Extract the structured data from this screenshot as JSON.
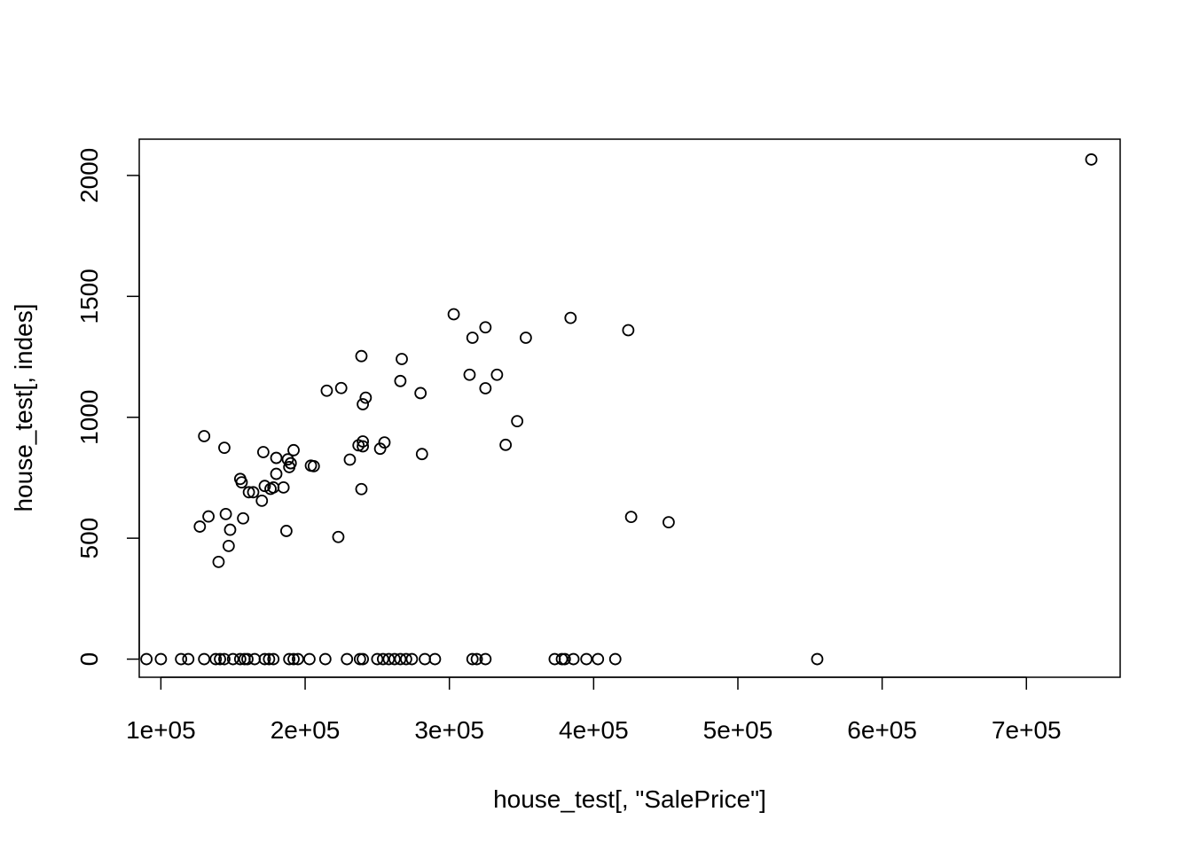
{
  "chart_data": {
    "type": "scatter",
    "title": "",
    "xlabel": "house_test[, \"SalePrice\"]",
    "ylabel": "house_test[, indes]",
    "xlim": [
      85000,
      765000
    ],
    "ylim": [
      -75,
      2150
    ],
    "x_ticks": [
      100000,
      200000,
      300000,
      400000,
      500000,
      600000,
      700000
    ],
    "x_tick_labels": [
      "1e+05",
      "2e+05",
      "3e+05",
      "4e+05",
      "5e+05",
      "6e+05",
      "7e+05"
    ],
    "y_ticks": [
      0,
      500,
      1000,
      1500,
      2000
    ],
    "y_tick_labels": [
      "0",
      "500",
      "1000",
      "1500",
      "2000"
    ],
    "grid": false,
    "legend": "none",
    "point_color": "#000000",
    "points": [
      [
        745000,
        2066
      ],
      [
        303000,
        1426
      ],
      [
        384000,
        1411
      ],
      [
        325000,
        1372
      ],
      [
        424000,
        1360
      ],
      [
        316000,
        1329
      ],
      [
        353000,
        1329
      ],
      [
        239000,
        1253
      ],
      [
        267000,
        1241
      ],
      [
        314000,
        1176
      ],
      [
        333000,
        1176
      ],
      [
        266000,
        1150
      ],
      [
        225000,
        1121
      ],
      [
        325000,
        1120
      ],
      [
        215000,
        1110
      ],
      [
        280000,
        1100
      ],
      [
        242000,
        1081
      ],
      [
        240000,
        1054
      ],
      [
        347000,
        984
      ],
      [
        130000,
        922
      ],
      [
        240000,
        900
      ],
      [
        255000,
        896
      ],
      [
        339000,
        886
      ],
      [
        237000,
        884
      ],
      [
        240000,
        880
      ],
      [
        144000,
        874
      ],
      [
        252000,
        870
      ],
      [
        192000,
        864
      ],
      [
        171000,
        856
      ],
      [
        281000,
        848
      ],
      [
        180000,
        832
      ],
      [
        231000,
        825
      ],
      [
        188000,
        826
      ],
      [
        190000,
        810
      ],
      [
        189000,
        794
      ],
      [
        204000,
        800
      ],
      [
        206000,
        798
      ],
      [
        180000,
        766
      ],
      [
        155000,
        745
      ],
      [
        156000,
        731
      ],
      [
        172000,
        716
      ],
      [
        176000,
        704
      ],
      [
        185000,
        710
      ],
      [
        178000,
        710
      ],
      [
        239000,
        703
      ],
      [
        161000,
        690
      ],
      [
        164000,
        690
      ],
      [
        170000,
        655
      ],
      [
        145000,
        600
      ],
      [
        133000,
        590
      ],
      [
        157000,
        582
      ],
      [
        426000,
        588
      ],
      [
        452000,
        566
      ],
      [
        127000,
        548
      ],
      [
        148000,
        535
      ],
      [
        187000,
        530
      ],
      [
        223000,
        505
      ],
      [
        147000,
        468
      ],
      [
        140000,
        402
      ],
      [
        555000,
        0
      ],
      [
        90000,
        0
      ],
      [
        100000,
        0
      ],
      [
        114000,
        0
      ],
      [
        119000,
        0
      ],
      [
        130000,
        0
      ],
      [
        138000,
        0
      ],
      [
        141000,
        0
      ],
      [
        144000,
        0
      ],
      [
        150000,
        0
      ],
      [
        155000,
        0
      ],
      [
        158000,
        0
      ],
      [
        160000,
        0
      ],
      [
        165000,
        0
      ],
      [
        172000,
        0
      ],
      [
        175000,
        0
      ],
      [
        178000,
        0
      ],
      [
        189000,
        0
      ],
      [
        192000,
        0
      ],
      [
        195000,
        0
      ],
      [
        203000,
        0
      ],
      [
        214000,
        0
      ],
      [
        229000,
        0
      ],
      [
        238000,
        0
      ],
      [
        240000,
        0
      ],
      [
        250000,
        0
      ],
      [
        254000,
        0
      ],
      [
        258000,
        0
      ],
      [
        262000,
        0
      ],
      [
        266000,
        0
      ],
      [
        270000,
        0
      ],
      [
        274000,
        0
      ],
      [
        283000,
        0
      ],
      [
        290000,
        0
      ],
      [
        316000,
        0
      ],
      [
        319000,
        0
      ],
      [
        325000,
        0
      ],
      [
        373000,
        0
      ],
      [
        378000,
        0
      ],
      [
        380000,
        0
      ],
      [
        386000,
        0
      ],
      [
        395000,
        0
      ],
      [
        403000,
        0
      ],
      [
        415000,
        0
      ]
    ]
  }
}
